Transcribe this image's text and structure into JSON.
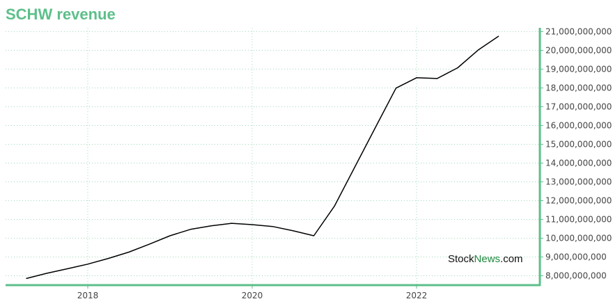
{
  "title": "SCHW revenue",
  "watermark": {
    "part1": "Stock",
    "part2": "News",
    "part3": ".com"
  },
  "colors": {
    "title": "#5cbf8a",
    "axis": "#5cbf8a",
    "grid": "#9ed8b8",
    "line": "#000000",
    "watermark_accent": "#1d8a3c"
  },
  "chart_data": {
    "type": "line",
    "title": "SCHW revenue",
    "xlabel": "",
    "ylabel": "",
    "x_ticks": [
      {
        "value": 2018,
        "label": "2018"
      },
      {
        "value": 2020,
        "label": "2020"
      },
      {
        "value": 2022,
        "label": "2022"
      }
    ],
    "y_ticks": [
      {
        "value": 8000000000,
        "label": "8,000,000,000"
      },
      {
        "value": 9000000000,
        "label": "9,000,000,000"
      },
      {
        "value": 10000000000,
        "label": "10,000,000,000"
      },
      {
        "value": 11000000000,
        "label": "11,000,000,000"
      },
      {
        "value": 12000000000,
        "label": "12,000,000,000"
      },
      {
        "value": 13000000000,
        "label": "13,000,000,000"
      },
      {
        "value": 14000000000,
        "label": "14,000,000,000"
      },
      {
        "value": 15000000000,
        "label": "15,000,000,000"
      },
      {
        "value": 16000000000,
        "label": "16,000,000,000"
      },
      {
        "value": 17000000000,
        "label": "17,000,000,000"
      },
      {
        "value": 18000000000,
        "label": "18,000,000,000"
      },
      {
        "value": 19000000000,
        "label": "19,000,000,000"
      },
      {
        "value": 20000000000,
        "label": "20,000,000,000"
      },
      {
        "value": 21000000000,
        "label": "21,000,000,000"
      }
    ],
    "xlim": [
      2017.0,
      2023.5
    ],
    "ylim": [
      7500000000,
      21200000000
    ],
    "grid": true,
    "y_axis_position": "right",
    "series": [
      {
        "points": [
          {
            "x": 2017.25,
            "y": 7850000000
          },
          {
            "x": 2017.5,
            "y": 8130000000
          },
          {
            "x": 2017.75,
            "y": 8370000000
          },
          {
            "x": 2018.0,
            "y": 8620000000
          },
          {
            "x": 2018.25,
            "y": 8920000000
          },
          {
            "x": 2018.5,
            "y": 9260000000
          },
          {
            "x": 2018.75,
            "y": 9680000000
          },
          {
            "x": 2019.0,
            "y": 10130000000
          },
          {
            "x": 2019.25,
            "y": 10470000000
          },
          {
            "x": 2019.5,
            "y": 10660000000
          },
          {
            "x": 2019.75,
            "y": 10790000000
          },
          {
            "x": 2020.0,
            "y": 10720000000
          },
          {
            "x": 2020.25,
            "y": 10620000000
          },
          {
            "x": 2020.5,
            "y": 10390000000
          },
          {
            "x": 2020.75,
            "y": 10130000000
          },
          {
            "x": 2021.0,
            "y": 11700000000
          },
          {
            "x": 2021.25,
            "y": 13800000000
          },
          {
            "x": 2021.5,
            "y": 15900000000
          },
          {
            "x": 2021.75,
            "y": 17990000000
          },
          {
            "x": 2022.0,
            "y": 18540000000
          },
          {
            "x": 2022.25,
            "y": 18500000000
          },
          {
            "x": 2022.5,
            "y": 19070000000
          },
          {
            "x": 2022.75,
            "y": 20020000000
          },
          {
            "x": 2023.0,
            "y": 20760000000
          }
        ]
      }
    ]
  }
}
